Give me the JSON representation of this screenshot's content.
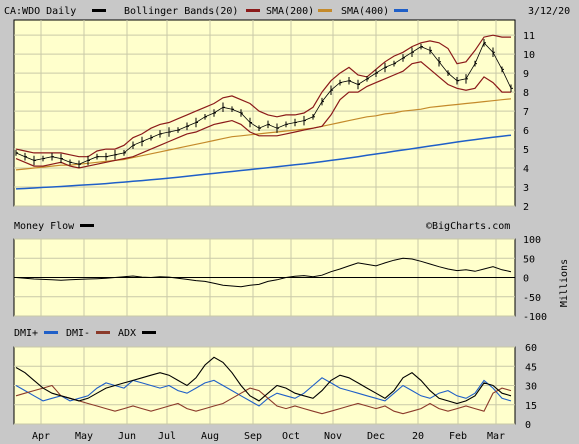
{
  "header": {
    "symbol_label": "CA:WDO Daily",
    "date": "3/12/20",
    "legend": [
      {
        "label": "Bollinger Bands(20)",
        "color": "#8B1A1A"
      },
      {
        "label": "SMA(200)",
        "color": "#C48A2B"
      },
      {
        "label": "SMA(400)",
        "color": "#1F5FC8"
      }
    ]
  },
  "watermark": "©BigCharts.com",
  "colors": {
    "panel_bg": "#FFFFCC",
    "frame_bg": "#C8C8C8",
    "grid": "#C9C9A8",
    "price": "#000000",
    "bollinger": "#8B1A1A",
    "sma200": "#C48A2B",
    "sma400": "#1F5FC8",
    "dmi_plus": "#1F5FC8",
    "dmi_minus": "#8B3A2A",
    "adx": "#000000"
  },
  "chart_data": [
    {
      "type": "line",
      "panel": "price",
      "x_tick_labels": [
        "Apr",
        "May",
        "Jun",
        "Jul",
        "Aug",
        "Sep",
        "Oct",
        "Nov",
        "Dec",
        "20",
        "Feb",
        "Mar"
      ],
      "y_ticks": [
        2,
        3,
        4,
        5,
        6,
        7,
        8,
        9,
        10,
        11
      ],
      "ylim": [
        2,
        11.8
      ],
      "grid": true,
      "series": [
        {
          "key": "price",
          "values": [
            4.8,
            4.6,
            4.4,
            4.5,
            4.6,
            4.5,
            4.3,
            4.2,
            4.4,
            4.6,
            4.6,
            4.7,
            4.8,
            5.2,
            5.4,
            5.6,
            5.8,
            5.9,
            6.0,
            6.2,
            6.4,
            6.7,
            6.9,
            7.2,
            7.1,
            6.9,
            6.4,
            6.1,
            6.3,
            6.1,
            6.3,
            6.4,
            6.5,
            6.7,
            7.5,
            8.1,
            8.5,
            8.6,
            8.4,
            8.7,
            9.0,
            9.3,
            9.5,
            9.8,
            10.1,
            10.4,
            10.2,
            9.6,
            9.0,
            8.6,
            8.7,
            9.5,
            10.6,
            10.1,
            9.2,
            8.2
          ]
        },
        {
          "key": "bb_upper",
          "values": [
            5.0,
            4.9,
            4.8,
            4.8,
            4.8,
            4.8,
            4.7,
            4.6,
            4.6,
            4.9,
            5.0,
            5.0,
            5.2,
            5.6,
            5.8,
            6.1,
            6.3,
            6.4,
            6.6,
            6.8,
            7.0,
            7.2,
            7.4,
            7.7,
            7.8,
            7.6,
            7.4,
            7.0,
            6.8,
            6.7,
            6.8,
            6.8,
            6.9,
            7.2,
            8.0,
            8.6,
            9.0,
            9.3,
            8.9,
            8.8,
            9.2,
            9.6,
            9.9,
            10.1,
            10.4,
            10.6,
            10.7,
            10.6,
            10.3,
            9.5,
            9.6,
            10.2,
            10.9,
            11.0,
            10.9,
            10.9
          ]
        },
        {
          "key": "bb_lower",
          "values": [
            4.5,
            4.3,
            4.1,
            4.1,
            4.2,
            4.3,
            4.1,
            4.0,
            4.1,
            4.2,
            4.3,
            4.4,
            4.5,
            4.6,
            4.8,
            5.0,
            5.2,
            5.4,
            5.6,
            5.8,
            5.9,
            6.1,
            6.3,
            6.4,
            6.5,
            6.3,
            5.9,
            5.7,
            5.7,
            5.7,
            5.8,
            5.9,
            6.0,
            6.1,
            6.2,
            6.8,
            7.6,
            8.0,
            8.0,
            8.3,
            8.5,
            8.7,
            8.9,
            9.1,
            9.5,
            9.6,
            9.2,
            8.8,
            8.4,
            8.2,
            8.1,
            8.2,
            8.8,
            8.5,
            8.0,
            8.0
          ]
        },
        {
          "key": "sma200",
          "values": [
            3.9,
            3.95,
            4.0,
            4.05,
            4.1,
            4.15,
            4.15,
            4.2,
            4.25,
            4.3,
            4.35,
            4.4,
            4.45,
            4.55,
            4.65,
            4.75,
            4.85,
            4.95,
            5.05,
            5.15,
            5.25,
            5.35,
            5.45,
            5.55,
            5.65,
            5.7,
            5.75,
            5.8,
            5.85,
            5.9,
            5.95,
            6.0,
            6.05,
            6.1,
            6.2,
            6.3,
            6.4,
            6.5,
            6.6,
            6.7,
            6.75,
            6.85,
            6.9,
            7.0,
            7.05,
            7.1,
            7.2,
            7.25,
            7.3,
            7.35,
            7.4,
            7.45,
            7.5,
            7.55,
            7.6,
            7.65
          ]
        },
        {
          "key": "sma400",
          "values": [
            2.9,
            2.92,
            2.95,
            2.98,
            3.0,
            3.03,
            3.06,
            3.09,
            3.12,
            3.15,
            3.18,
            3.22,
            3.26,
            3.3,
            3.34,
            3.38,
            3.42,
            3.47,
            3.52,
            3.57,
            3.62,
            3.67,
            3.72,
            3.77,
            3.82,
            3.87,
            3.92,
            3.97,
            4.02,
            4.07,
            4.12,
            4.17,
            4.22,
            4.28,
            4.34,
            4.4,
            4.46,
            4.53,
            4.6,
            4.67,
            4.74,
            4.81,
            4.88,
            4.95,
            5.02,
            5.09,
            5.16,
            5.23,
            5.3,
            5.37,
            5.44,
            5.5,
            5.56,
            5.62,
            5.68,
            5.73
          ]
        }
      ]
    },
    {
      "type": "line",
      "panel": "money_flow",
      "title": "Money Flow",
      "y_ticks": [
        100,
        50,
        0,
        -50,
        -100
      ],
      "ylim": [
        -100,
        100
      ],
      "ylabel": "Millions",
      "grid": true,
      "series": [
        {
          "key": "money_flow",
          "values": [
            0,
            -2,
            -4,
            -5,
            -6,
            -7,
            -6,
            -5,
            -4,
            -3,
            -2,
            0,
            2,
            4,
            1,
            0,
            2,
            1,
            -2,
            -5,
            -8,
            -10,
            -15,
            -20,
            -22,
            -24,
            -20,
            -18,
            -10,
            -6,
            0,
            3,
            5,
            2,
            6,
            15,
            22,
            30,
            38,
            34,
            30,
            38,
            45,
            50,
            48,
            42,
            35,
            28,
            22,
            18,
            20,
            16,
            22,
            28,
            20,
            15
          ]
        }
      ]
    },
    {
      "type": "line",
      "panel": "dmi",
      "legend": [
        "DMI+",
        "DMI-",
        "ADX"
      ],
      "y_ticks": [
        60,
        45,
        30,
        15,
        0
      ],
      "ylim": [
        0,
        60
      ],
      "grid": true,
      "series": [
        {
          "key": "dmi_plus",
          "name": "DMI+",
          "values": [
            30,
            26,
            22,
            18,
            20,
            22,
            18,
            20,
            22,
            28,
            32,
            30,
            28,
            34,
            32,
            30,
            28,
            30,
            26,
            24,
            28,
            32,
            34,
            30,
            26,
            22,
            18,
            14,
            20,
            24,
            22,
            20,
            24,
            30,
            36,
            32,
            28,
            26,
            24,
            22,
            20,
            18,
            24,
            30,
            26,
            22,
            20,
            24,
            26,
            22,
            20,
            24,
            34,
            28,
            20,
            18
          ]
        },
        {
          "key": "dmi_minus",
          "name": "DMI-",
          "values": [
            22,
            24,
            26,
            28,
            30,
            22,
            20,
            18,
            16,
            14,
            12,
            10,
            12,
            14,
            12,
            10,
            12,
            14,
            16,
            12,
            10,
            12,
            14,
            16,
            20,
            24,
            28,
            26,
            20,
            14,
            12,
            14,
            12,
            10,
            8,
            10,
            12,
            14,
            16,
            14,
            12,
            14,
            10,
            8,
            10,
            12,
            16,
            12,
            10,
            12,
            14,
            12,
            10,
            24,
            28,
            26
          ]
        },
        {
          "key": "adx",
          "name": "ADX",
          "values": [
            44,
            40,
            34,
            28,
            24,
            22,
            20,
            18,
            20,
            24,
            28,
            30,
            32,
            34,
            36,
            38,
            40,
            38,
            34,
            30,
            36,
            46,
            52,
            48,
            40,
            30,
            22,
            18,
            24,
            30,
            28,
            24,
            22,
            20,
            26,
            34,
            38,
            36,
            32,
            28,
            24,
            20,
            26,
            36,
            40,
            34,
            26,
            20,
            18,
            16,
            18,
            22,
            32,
            30,
            24,
            22
          ]
        }
      ]
    }
  ]
}
